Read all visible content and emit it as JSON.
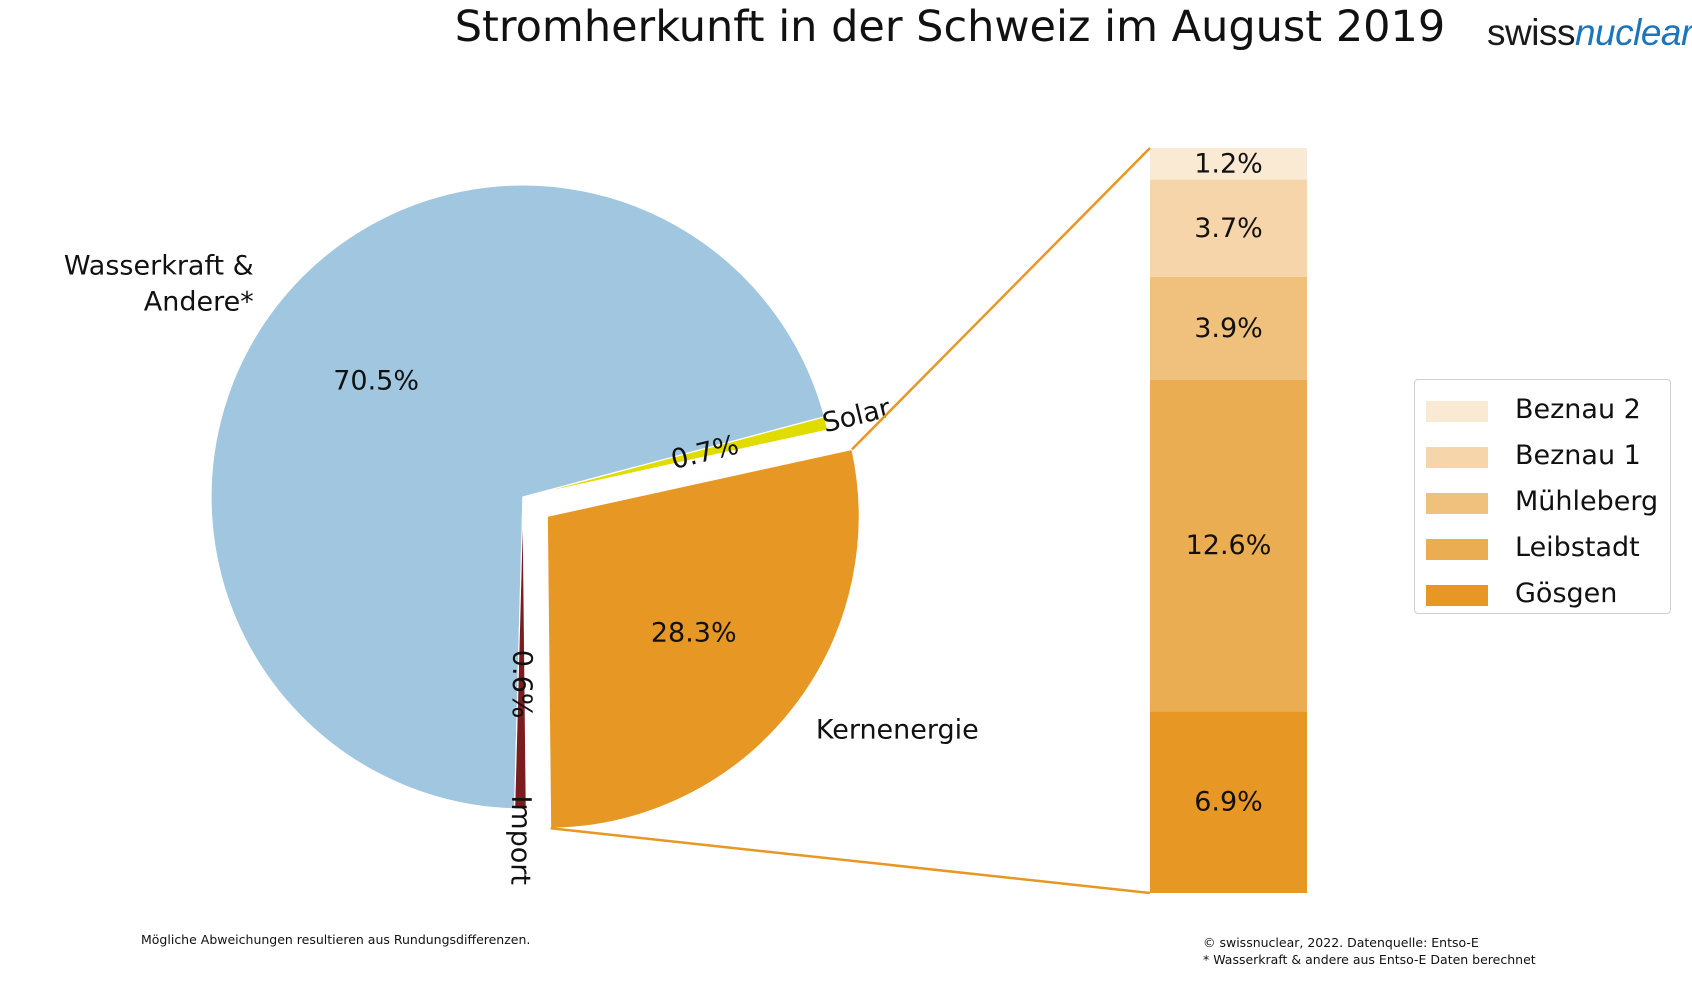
{
  "title": "Stromherkunft in der Schweiz im August 2019",
  "logo": {
    "part1": "swiss",
    "part2": "nuclear"
  },
  "chart_data": [
    {
      "type": "pie",
      "slices": [
        {
          "label": "Wasserkraft &\nAndere*",
          "value": 70.5,
          "pct_label": "70.5%",
          "color": "#a1c7e0"
        },
        {
          "label": "Solar",
          "value": 0.7,
          "pct_label": "0.7%",
          "color": "#e1dc00"
        },
        {
          "label": "Kernenergie",
          "value": 28.3,
          "pct_label": "28.3%",
          "color": "#e69724",
          "exploded": true
        },
        {
          "label": "Import",
          "value": 0.6,
          "pct_label": "0.6%",
          "color": "#7b1c1f"
        }
      ]
    },
    {
      "type": "bar",
      "stacked": true,
      "series": [
        {
          "name": "Gösgen",
          "value": 6.9,
          "label": "6.9%",
          "color": "#e69724"
        },
        {
          "name": "Leibstadt",
          "value": 12.6,
          "label": "12.6%",
          "color": "#ebad52"
        },
        {
          "name": "Mühleberg",
          "value": 3.9,
          "label": "3.9%",
          "color": "#f0c07d"
        },
        {
          "name": "Beznau 1",
          "value": 3.7,
          "label": "3.7%",
          "color": "#f5d5a9"
        },
        {
          "name": "Beznau 2",
          "value": 1.2,
          "label": "1.2%",
          "color": "#fae9d3"
        }
      ],
      "legend_order": [
        "Beznau 2",
        "Beznau 1",
        "Mühleberg",
        "Leibstadt",
        "Gösgen"
      ],
      "legend_position": "right"
    }
  ],
  "connector_color": "#e69724",
  "footnote_left": "Mögliche Abweichungen resultieren aus Rundungsdifferenzen.",
  "footnote_right": [
    "© swissnuclear, 2022. Datenquelle: Entso-E",
    "* Wasserkraft & andere aus Entso-E Daten berechnet"
  ]
}
